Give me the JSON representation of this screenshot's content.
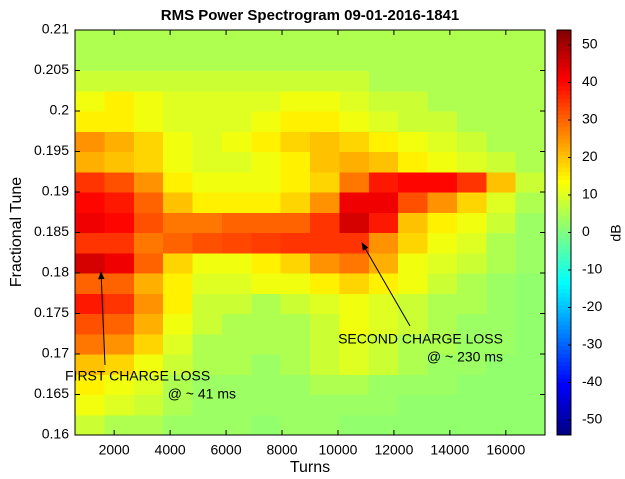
{
  "chart_data": {
    "type": "heatmap",
    "title": "RMS Power Spectrogram 09-01-2016-1841",
    "x_label": "Turns",
    "y_label": "Fractional Tune",
    "colorbar_label": "dB",
    "xlim": [
      600,
      17400
    ],
    "ylim": [
      0.16,
      0.21
    ],
    "xticks": [
      2000,
      4000,
      6000,
      8000,
      10000,
      12000,
      14000,
      16000
    ],
    "yticks": [
      0.16,
      0.165,
      0.17,
      0.175,
      0.18,
      0.185,
      0.19,
      0.195,
      0.2,
      0.205,
      0.21
    ],
    "clim": [
      -54,
      54
    ],
    "cticks": [
      -50,
      -40,
      -30,
      -20,
      -10,
      0,
      10,
      20,
      30,
      40,
      50
    ],
    "xbins": [
      600,
      1650,
      2700,
      3750,
      4800,
      5850,
      6900,
      7950,
      9000,
      10050,
      11100,
      12150,
      13200,
      14250,
      15300,
      16350,
      17400
    ],
    "ybins": [
      0.16,
      0.1625,
      0.165,
      0.1675,
      0.17,
      0.1725,
      0.175,
      0.1775,
      0.18,
      0.1825,
      0.185,
      0.1875,
      0.19,
      0.1925,
      0.195,
      0.1975,
      0.2,
      0.2025,
      0.205,
      0.2075,
      0.21
    ],
    "values": [
      [
        8,
        5,
        5,
        3,
        3,
        3,
        2,
        3,
        3,
        2,
        2,
        2,
        2,
        2,
        2,
        2
      ],
      [
        12,
        10,
        8,
        5,
        3,
        3,
        3,
        3,
        3,
        3,
        3,
        2,
        2,
        2,
        2,
        2
      ],
      [
        15,
        12,
        10,
        5,
        3,
        3,
        3,
        3,
        5,
        5,
        3,
        3,
        3,
        2,
        2,
        2
      ],
      [
        20,
        18,
        12,
        8,
        5,
        5,
        3,
        5,
        8,
        10,
        8,
        5,
        3,
        3,
        2,
        2
      ],
      [
        28,
        25,
        18,
        10,
        5,
        5,
        5,
        5,
        8,
        10,
        8,
        5,
        5,
        3,
        3,
        2
      ],
      [
        32,
        30,
        22,
        12,
        8,
        5,
        5,
        5,
        8,
        12,
        10,
        8,
        5,
        3,
        3,
        2
      ],
      [
        38,
        35,
        25,
        15,
        8,
        8,
        5,
        8,
        10,
        12,
        10,
        8,
        5,
        5,
        3,
        2
      ],
      [
        30,
        30,
        22,
        15,
        10,
        10,
        12,
        12,
        15,
        18,
        15,
        12,
        8,
        5,
        3,
        2
      ],
      [
        45,
        42,
        30,
        18,
        12,
        12,
        15,
        18,
        25,
        28,
        22,
        12,
        10,
        8,
        5,
        3
      ],
      [
        35,
        35,
        28,
        30,
        32,
        33,
        34,
        35,
        35,
        35,
        25,
        18,
        12,
        10,
        5,
        3
      ],
      [
        42,
        40,
        32,
        28,
        28,
        30,
        30,
        30,
        35,
        45,
        38,
        20,
        15,
        12,
        8,
        3
      ],
      [
        40,
        38,
        30,
        20,
        15,
        15,
        15,
        18,
        25,
        42,
        42,
        32,
        25,
        18,
        10,
        5
      ],
      [
        35,
        32,
        25,
        15,
        12,
        12,
        12,
        15,
        18,
        28,
        38,
        40,
        40,
        35,
        20,
        8
      ],
      [
        22,
        20,
        18,
        12,
        10,
        10,
        12,
        15,
        20,
        22,
        20,
        15,
        12,
        10,
        8,
        5
      ],
      [
        25,
        22,
        18,
        12,
        10,
        12,
        15,
        18,
        20,
        18,
        15,
        12,
        10,
        8,
        5,
        5
      ],
      [
        15,
        15,
        12,
        10,
        10,
        10,
        12,
        15,
        15,
        12,
        10,
        8,
        8,
        5,
        5,
        5
      ],
      [
        12,
        15,
        12,
        10,
        10,
        10,
        10,
        12,
        12,
        10,
        8,
        8,
        5,
        5,
        5,
        5
      ],
      [
        8,
        8,
        8,
        8,
        8,
        8,
        8,
        8,
        8,
        8,
        5,
        5,
        5,
        5,
        5,
        5
      ],
      [
        5,
        5,
        5,
        5,
        5,
        5,
        5,
        5,
        5,
        5,
        5,
        5,
        5,
        5,
        5,
        5
      ],
      [
        5,
        5,
        5,
        5,
        5,
        5,
        5,
        5,
        5,
        5,
        5,
        5,
        5,
        5,
        5,
        5
      ]
    ],
    "annotations": [
      {
        "lines": [
          "FIRST CHARGE LOSS",
          "@ ~ 41 ms"
        ]
      },
      {
        "lines": [
          "SECOND CHARGE LOSS",
          "@ ~ 230 ms"
        ]
      }
    ]
  }
}
